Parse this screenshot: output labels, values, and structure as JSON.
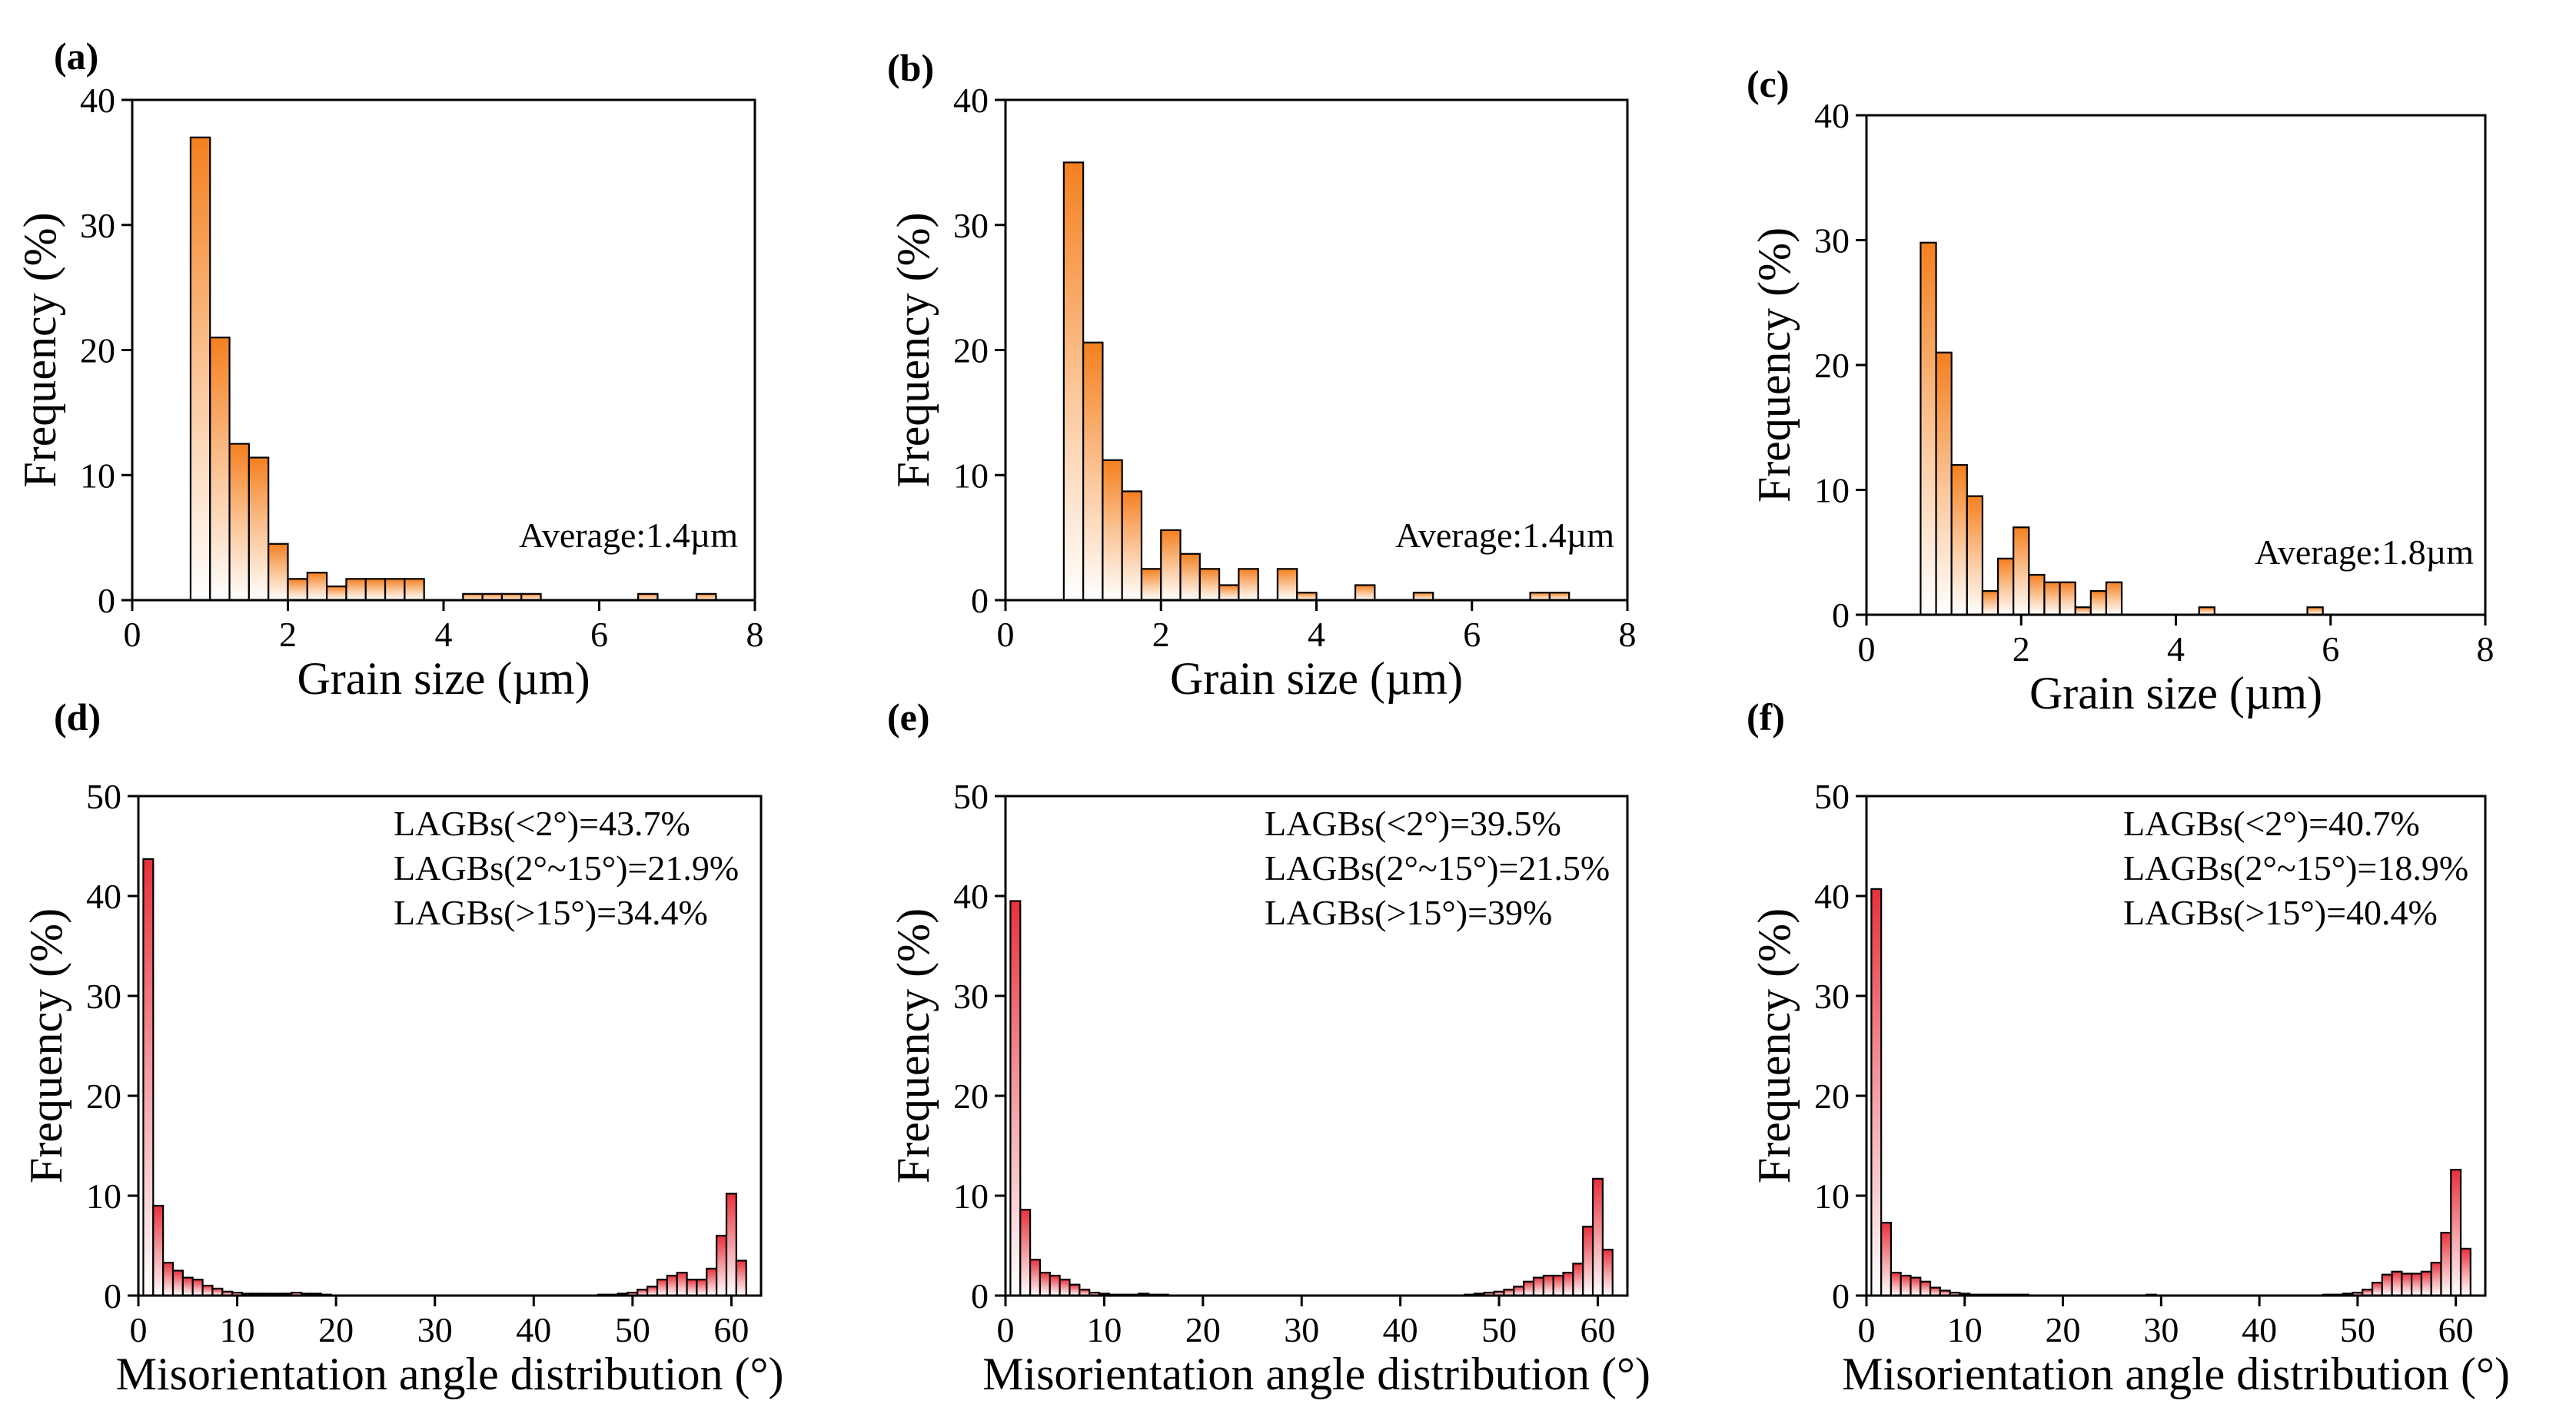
{
  "chart_data": [
    {
      "id": "a",
      "type": "bar",
      "panel_label": "(a)",
      "xlabel": "Grain size (µm)",
      "ylabel": "Frequency (%)",
      "xlim": [
        0,
        8
      ],
      "ylim": [
        0,
        40
      ],
      "xticks": [
        0,
        2,
        4,
        6,
        8
      ],
      "yticks": [
        0,
        10,
        20,
        30,
        40
      ],
      "bar_width": 0.25,
      "x": [
        0.875,
        1.125,
        1.375,
        1.625,
        1.875,
        2.125,
        2.375,
        2.625,
        2.875,
        3.125,
        3.375,
        3.625,
        4.375,
        4.625,
        4.875,
        5.125,
        6.625,
        7.375
      ],
      "values": [
        37,
        21,
        12.5,
        11.4,
        4.5,
        1.7,
        2.2,
        1.1,
        1.7,
        1.7,
        1.7,
        1.7,
        0.5,
        0.5,
        0.5,
        0.5,
        0.5,
        0.5
      ],
      "annotations": [
        "Average:1.4µm"
      ],
      "colors": [
        "#f4801f",
        "#ffffff"
      ]
    },
    {
      "id": "b",
      "type": "bar",
      "panel_label": "(b)",
      "xlabel": "Grain size (µm)",
      "ylabel": "Frequency (%)",
      "xlim": [
        0,
        8
      ],
      "ylim": [
        0,
        40
      ],
      "xticks": [
        0,
        2,
        4,
        6,
        8
      ],
      "yticks": [
        0,
        10,
        20,
        30,
        40
      ],
      "bar_width": 0.25,
      "x": [
        0.875,
        1.125,
        1.375,
        1.625,
        1.875,
        2.125,
        2.375,
        2.625,
        2.875,
        3.125,
        3.625,
        3.875,
        4.625,
        5.375,
        6.875,
        7.125
      ],
      "values": [
        35,
        20.6,
        11.2,
        8.7,
        2.5,
        5.6,
        3.7,
        2.5,
        1.2,
        2.5,
        2.5,
        0.6,
        1.2,
        0.6,
        0.6,
        0.6
      ],
      "annotations": [
        "Average:1.4µm"
      ],
      "colors": [
        "#f4801f",
        "#ffffff"
      ]
    },
    {
      "id": "c",
      "type": "bar",
      "panel_label": "(c)",
      "xlabel": "Grain size (µm)",
      "ylabel": "Frequency (%)",
      "xlim": [
        0,
        8
      ],
      "ylim": [
        0,
        40
      ],
      "xticks": [
        0,
        2,
        4,
        6,
        8
      ],
      "yticks": [
        0,
        10,
        20,
        30,
        40
      ],
      "bar_width": 0.2,
      "x": [
        0.8,
        1.0,
        1.2,
        1.4,
        1.6,
        1.8,
        2.0,
        2.2,
        2.4,
        2.6,
        2.8,
        3.0,
        3.2,
        4.4,
        5.8
      ],
      "values": [
        29.8,
        21,
        12,
        9.5,
        1.9,
        4.5,
        7,
        3.2,
        2.6,
        2.6,
        0.6,
        1.9,
        2.6,
        0.6,
        0.6
      ],
      "annotations": [
        "Average:1.8µm"
      ],
      "colors": [
        "#f4801f",
        "#ffffff"
      ]
    },
    {
      "id": "d",
      "type": "bar",
      "panel_label": "(d)",
      "xlabel": "Misorientation angle distribution (°)",
      "ylabel": "Frequency (%)",
      "xlim": [
        0,
        63
      ],
      "ylim": [
        0,
        50
      ],
      "xticks": [
        0,
        10,
        20,
        30,
        40,
        50,
        60
      ],
      "yticks": [
        0,
        10,
        20,
        30,
        40,
        50
      ],
      "bar_width": 1,
      "x": [
        1,
        2,
        3,
        4,
        5,
        6,
        7,
        8,
        9,
        10,
        11,
        12,
        13,
        14,
        15,
        16,
        17,
        18,
        19,
        47,
        48,
        49,
        50,
        51,
        52,
        53,
        54,
        55,
        56,
        57,
        58,
        59,
        60,
        61
      ],
      "values": [
        43.7,
        9,
        3.3,
        2.5,
        1.8,
        1.6,
        1.0,
        0.7,
        0.4,
        0.3,
        0.2,
        0.2,
        0.2,
        0.2,
        0.2,
        0.3,
        0.2,
        0.2,
        0.1,
        0.1,
        0.1,
        0.2,
        0.3,
        0.6,
        0.9,
        1.6,
        2.0,
        2.3,
        1.6,
        1.6,
        2.7,
        6.0,
        10.2,
        3.5
      ],
      "annotations": [
        "LAGBs(<2°)=43.7%",
        "LAGBs(2°~15°)=21.9%",
        "LAGBs(>15°)=34.4%"
      ],
      "colors": [
        "#e8313c",
        "#ffffff"
      ]
    },
    {
      "id": "e",
      "type": "bar",
      "panel_label": "(e)",
      "xlabel": "Misorientation angle distribution (°)",
      "ylabel": "Frequency (%)",
      "xlim": [
        0,
        63
      ],
      "ylim": [
        0,
        50
      ],
      "xticks": [
        0,
        10,
        20,
        30,
        40,
        50,
        60
      ],
      "yticks": [
        0,
        10,
        20,
        30,
        40,
        50
      ],
      "bar_width": 1,
      "x": [
        1,
        2,
        3,
        4,
        5,
        6,
        7,
        8,
        9,
        10,
        11,
        12,
        13,
        14,
        15,
        16,
        47,
        48,
        49,
        50,
        51,
        52,
        53,
        54,
        55,
        56,
        57,
        58,
        59,
        60,
        61
      ],
      "values": [
        39.5,
        8.6,
        3.6,
        2.3,
        2.0,
        1.6,
        1.1,
        0.6,
        0.3,
        0.2,
        0.1,
        0.1,
        0.1,
        0.2,
        0.1,
        0.1,
        0.1,
        0.2,
        0.3,
        0.4,
        0.6,
        0.9,
        1.4,
        1.8,
        2.0,
        2.0,
        2.3,
        3.2,
        6.9,
        11.7,
        4.6
      ],
      "annotations": [
        "LAGBs(<2°)=39.5%",
        "LAGBs(2°~15°)=21.5%",
        "LAGBs(>15°)=39%"
      ],
      "colors": [
        "#e8313c",
        "#ffffff"
      ]
    },
    {
      "id": "f",
      "type": "bar",
      "panel_label": "(f)",
      "xlabel": "Misorientation angle distribution (°)",
      "ylabel": "Frequency (%)",
      "xlim": [
        0,
        63
      ],
      "ylim": [
        0,
        50
      ],
      "xticks": [
        0,
        10,
        20,
        30,
        40,
        50,
        60
      ],
      "yticks": [
        0,
        10,
        20,
        30,
        40,
        50
      ],
      "bar_width": 1,
      "x": [
        1,
        2,
        3,
        4,
        5,
        6,
        7,
        8,
        9,
        10,
        11,
        12,
        13,
        14,
        15,
        16,
        29,
        47,
        48,
        49,
        50,
        51,
        52,
        53,
        54,
        55,
        56,
        57,
        58,
        59,
        60,
        61
      ],
      "values": [
        40.7,
        7.3,
        2.3,
        2.0,
        1.8,
        1.4,
        0.8,
        0.5,
        0.3,
        0.2,
        0.1,
        0.1,
        0.1,
        0.1,
        0.1,
        0.1,
        0.1,
        0.1,
        0.1,
        0.2,
        0.3,
        0.6,
        1.3,
        2.1,
        2.4,
        2.2,
        2.2,
        2.4,
        3.3,
        6.3,
        12.6,
        4.7
      ],
      "annotations": [
        "LAGBs(<2°)=40.7%",
        "LAGBs(2°~15°)=18.9%",
        "LAGBs(>15°)=40.4%"
      ],
      "colors": [
        "#e8313c",
        "#ffffff"
      ]
    }
  ]
}
